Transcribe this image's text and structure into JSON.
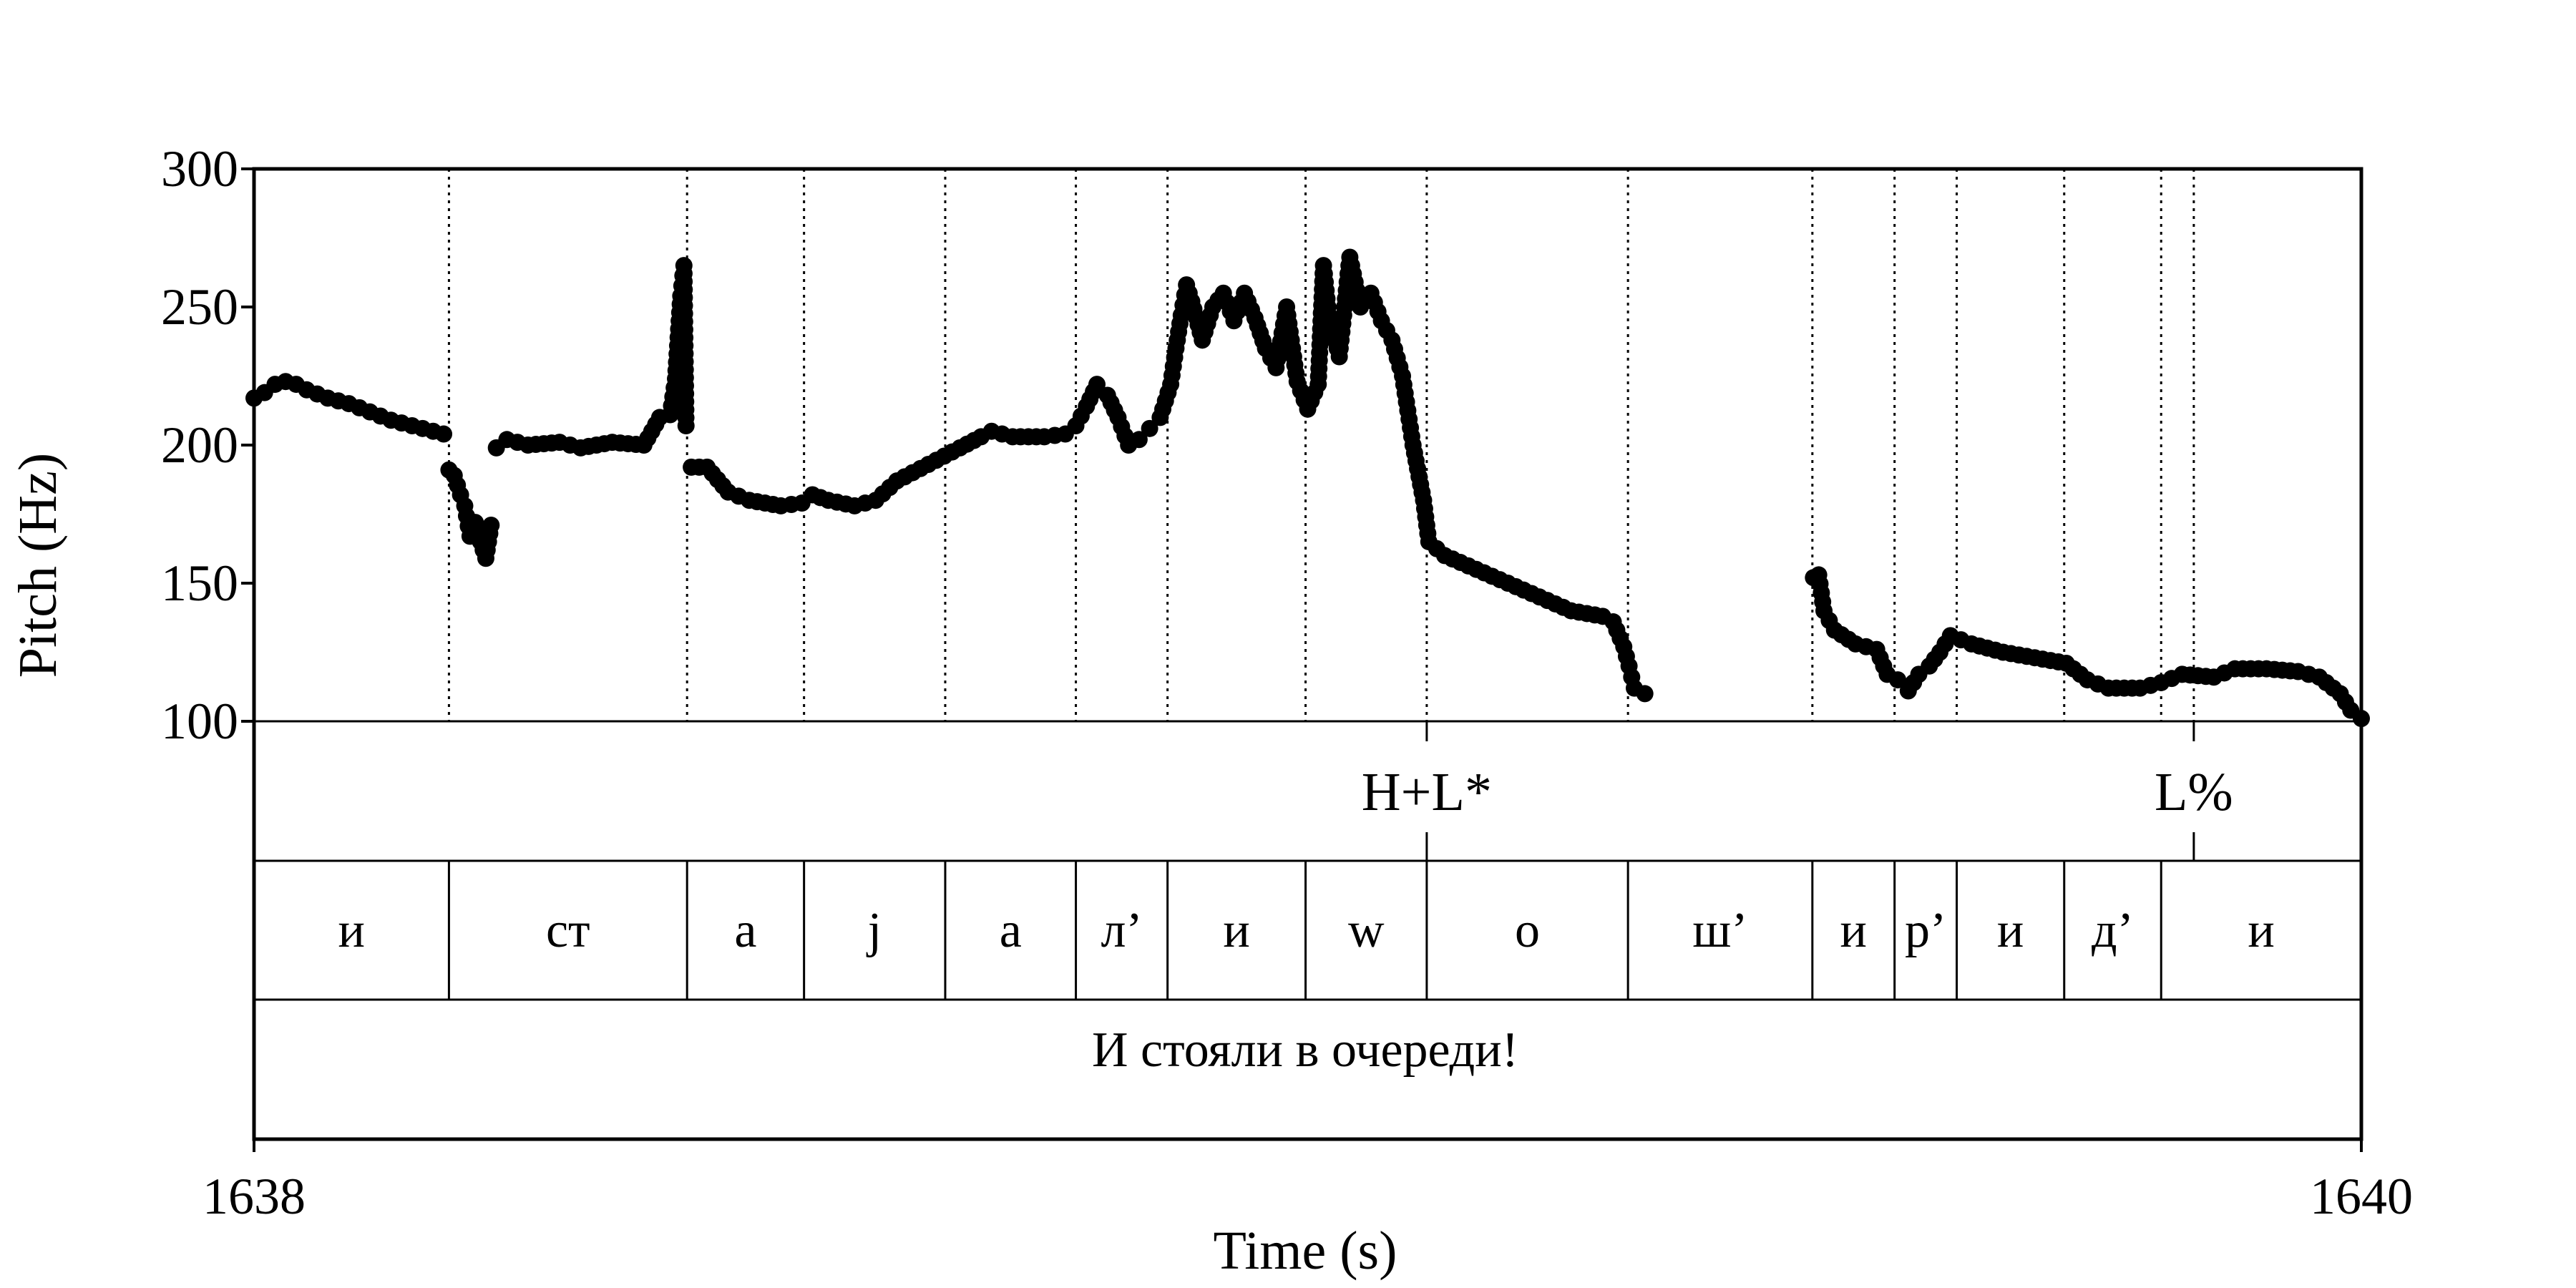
{
  "chart_data": {
    "type": "scatter",
    "title": "",
    "xlabel": "Time (s)",
    "ylabel": "Pitch (Hz)",
    "xlim": [
      1638,
      1640
    ],
    "ylim": [
      100,
      300
    ],
    "x_ticks": [
      "1638",
      "1640"
    ],
    "y_ticks": [
      "100",
      "150",
      "200",
      "250",
      "300"
    ],
    "tones": {
      "boundaries": [
        1639.113,
        1639.841
      ],
      "labels": [
        {
          "text": "H+L*",
          "x": 1639.113
        },
        {
          "text": "L%",
          "x": 1639.841
        }
      ]
    },
    "segments": {
      "boundaries": [
        1638.185,
        1638.411,
        1638.522,
        1638.656,
        1638.78,
        1638.867,
        1638.998,
        1639.113,
        1639.304,
        1639.479,
        1639.557,
        1639.616,
        1639.718,
        1639.81
      ],
      "labels": [
        "и",
        "ст",
        "а",
        "j",
        "а",
        "л’",
        "и",
        "w",
        "о",
        "ш’",
        "и",
        "р’",
        "и",
        "д’",
        "и"
      ]
    },
    "utterance": {
      "text": "И стояли в очереди!"
    },
    "pitch_runs": [
      [
        [
          1638.0,
          217
        ],
        [
          1638.01,
          219
        ],
        [
          1638.02,
          222
        ],
        [
          1638.03,
          223
        ],
        [
          1638.04,
          222
        ],
        [
          1638.05,
          220
        ],
        [
          1638.07,
          217
        ],
        [
          1638.09,
          215
        ],
        [
          1638.11,
          212
        ],
        [
          1638.13,
          209
        ],
        [
          1638.15,
          207
        ],
        [
          1638.17,
          205
        ],
        [
          1638.18,
          204
        ]
      ],
      [
        [
          1638.185,
          191
        ],
        [
          1638.19,
          189
        ],
        [
          1638.196,
          182
        ],
        [
          1638.2,
          178
        ],
        [
          1638.205,
          167
        ],
        [
          1638.21,
          172
        ],
        [
          1638.215,
          165
        ],
        [
          1638.22,
          159
        ],
        [
          1638.225,
          171
        ]
      ],
      [
        [
          1638.23,
          199
        ],
        [
          1638.24,
          202
        ],
        [
          1638.26,
          200
        ],
        [
          1638.29,
          201
        ],
        [
          1638.31,
          199
        ],
        [
          1638.34,
          201
        ],
        [
          1638.37,
          200
        ],
        [
          1638.385,
          210
        ],
        [
          1638.395,
          211
        ],
        [
          1638.4,
          224
        ],
        [
          1638.405,
          254
        ],
        [
          1638.408,
          265
        ],
        [
          1638.41,
          207
        ]
      ],
      [
        [
          1638.415,
          192
        ],
        [
          1638.43,
          192
        ],
        [
          1638.45,
          183
        ],
        [
          1638.47,
          180
        ],
        [
          1638.5,
          178
        ],
        [
          1638.52,
          179
        ],
        [
          1638.53,
          182
        ],
        [
          1638.545,
          180
        ],
        [
          1638.57,
          178
        ],
        [
          1638.59,
          180
        ],
        [
          1638.61,
          187
        ],
        [
          1638.64,
          193
        ],
        [
          1638.67,
          199
        ],
        [
          1638.69,
          203
        ],
        [
          1638.7,
          205
        ],
        [
          1638.72,
          203
        ],
        [
          1638.75,
          203
        ],
        [
          1638.77,
          204
        ],
        [
          1638.78,
          207
        ],
        [
          1638.79,
          214
        ],
        [
          1638.8,
          222
        ],
        [
          1638.81,
          218
        ],
        [
          1638.82,
          210
        ],
        [
          1638.83,
          200
        ],
        [
          1638.84,
          202
        ],
        [
          1638.85,
          206
        ],
        [
          1638.86,
          210
        ],
        [
          1638.87,
          222
        ],
        [
          1638.875,
          235
        ],
        [
          1638.88,
          247
        ],
        [
          1638.885,
          258
        ],
        [
          1638.89,
          252
        ],
        [
          1638.9,
          238
        ],
        [
          1638.91,
          250
        ],
        [
          1638.92,
          255
        ],
        [
          1638.93,
          245
        ],
        [
          1638.94,
          255
        ],
        [
          1638.95,
          246
        ],
        [
          1638.96,
          235
        ],
        [
          1638.97,
          228
        ],
        [
          1638.98,
          250
        ],
        [
          1638.99,
          223
        ],
        [
          1639.0,
          213
        ],
        [
          1639.01,
          222
        ],
        [
          1639.015,
          265
        ],
        [
          1639.02,
          247
        ],
        [
          1639.03,
          232
        ],
        [
          1639.04,
          268
        ],
        [
          1639.05,
          250
        ],
        [
          1639.06,
          255
        ],
        [
          1639.07,
          245
        ],
        [
          1639.08,
          238
        ],
        [
          1639.09,
          225
        ],
        [
          1639.1,
          200
        ],
        [
          1639.11,
          180
        ],
        [
          1639.115,
          165
        ],
        [
          1639.13,
          160
        ],
        [
          1639.16,
          155
        ],
        [
          1639.19,
          150
        ],
        [
          1639.22,
          145
        ],
        [
          1639.25,
          140
        ],
        [
          1639.28,
          138
        ],
        [
          1639.29,
          136
        ],
        [
          1639.3,
          127
        ],
        [
          1639.305,
          120
        ],
        [
          1639.31,
          112
        ],
        [
          1639.32,
          110
        ]
      ],
      [
        [
          1639.48,
          152
        ],
        [
          1639.485,
          153
        ],
        [
          1639.49,
          140
        ],
        [
          1639.5,
          133
        ],
        [
          1639.52,
          128
        ],
        [
          1639.54,
          126
        ],
        [
          1639.55,
          117
        ],
        [
          1639.56,
          115
        ],
        [
          1639.57,
          111
        ],
        [
          1639.58,
          117
        ],
        [
          1639.59,
          120
        ],
        [
          1639.6,
          125
        ],
        [
          1639.61,
          131
        ],
        [
          1639.63,
          128
        ],
        [
          1639.66,
          125
        ],
        [
          1639.69,
          123
        ],
        [
          1639.72,
          121
        ],
        [
          1639.74,
          115
        ],
        [
          1639.76,
          112
        ],
        [
          1639.79,
          112
        ],
        [
          1639.81,
          114
        ],
        [
          1639.83,
          117
        ],
        [
          1639.86,
          116
        ],
        [
          1639.88,
          119
        ],
        [
          1639.91,
          119
        ],
        [
          1639.94,
          118
        ],
        [
          1639.96,
          116
        ],
        [
          1639.98,
          110
        ],
        [
          1639.99,
          104
        ],
        [
          1640.0,
          101
        ]
      ]
    ]
  }
}
